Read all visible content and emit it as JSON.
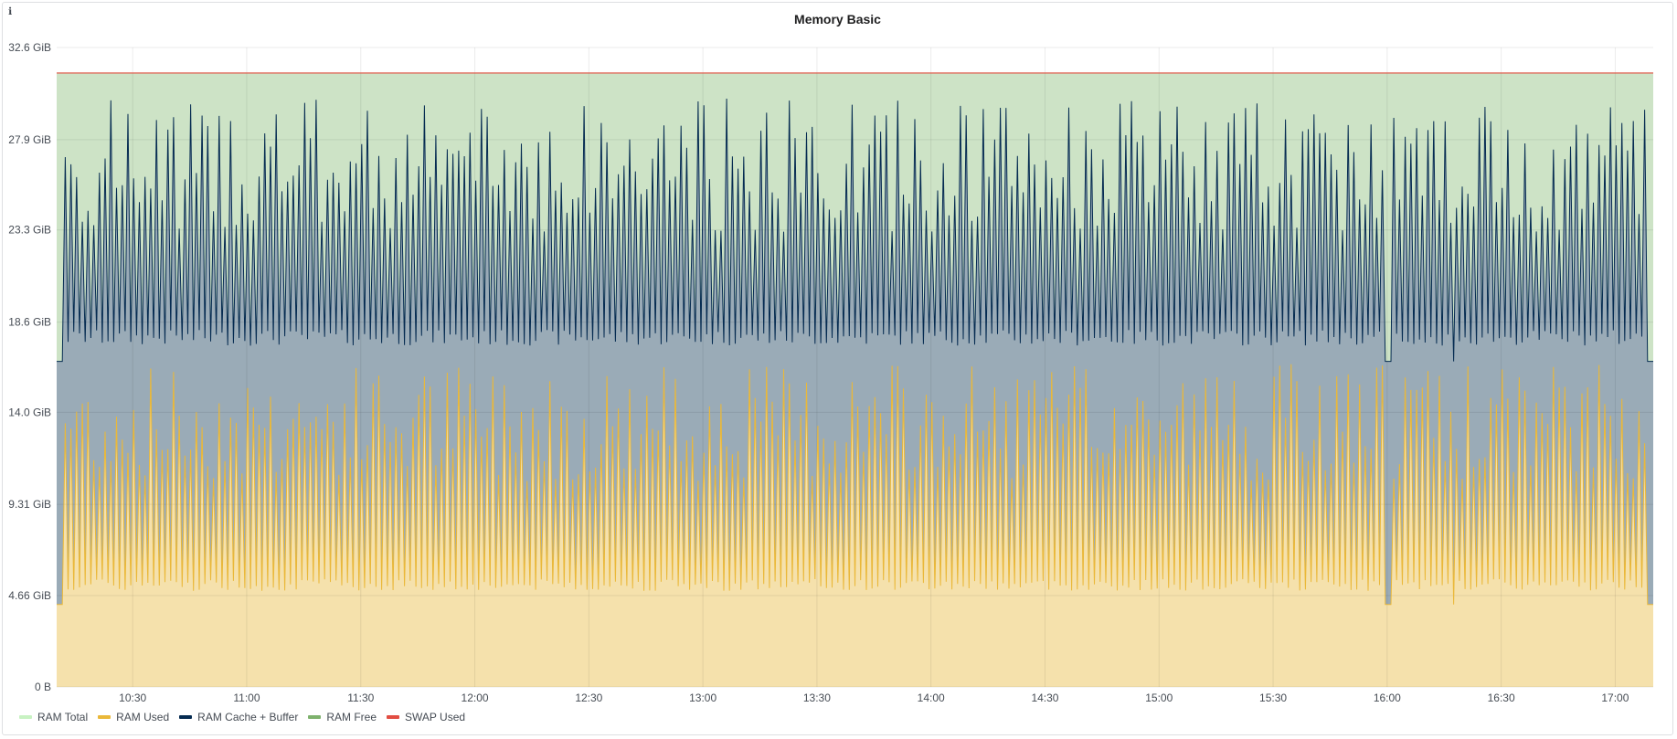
{
  "panel": {
    "title": "Memory Basic",
    "info_icon": "info-icon"
  },
  "chart_data": {
    "type": "area",
    "title": "Memory Basic",
    "xlabel": "",
    "ylabel": "",
    "ylim": [
      0,
      32.6
    ],
    "yunit": "GiB",
    "y_ticks": [
      {
        "value": 0,
        "label": "0 B"
      },
      {
        "value": 4.66,
        "label": "4.66 GiB"
      },
      {
        "value": 9.31,
        "label": "9.31 GiB"
      },
      {
        "value": 14.0,
        "label": "14.0 GiB"
      },
      {
        "value": 18.6,
        "label": "18.6 GiB"
      },
      {
        "value": 23.3,
        "label": "23.3 GiB"
      },
      {
        "value": 27.9,
        "label": "27.9 GiB"
      },
      {
        "value": 32.6,
        "label": "32.6 GiB"
      }
    ],
    "x_range_minutes": [
      610,
      1030
    ],
    "x_ticks": [
      {
        "minute": 630,
        "label": "10:30"
      },
      {
        "minute": 660,
        "label": "11:00"
      },
      {
        "minute": 690,
        "label": "11:30"
      },
      {
        "minute": 720,
        "label": "12:00"
      },
      {
        "minute": 750,
        "label": "12:30"
      },
      {
        "minute": 780,
        "label": "13:00"
      },
      {
        "minute": 810,
        "label": "13:30"
      },
      {
        "minute": 840,
        "label": "14:00"
      },
      {
        "minute": 870,
        "label": "14:30"
      },
      {
        "minute": 900,
        "label": "15:00"
      },
      {
        "minute": 930,
        "label": "15:30"
      },
      {
        "minute": 960,
        "label": "16:00"
      },
      {
        "minute": 990,
        "label": "16:30"
      },
      {
        "minute": 1020,
        "label": "17:00"
      }
    ],
    "series": [
      {
        "name": "RAM Total",
        "color": "#c8f2c2",
        "approx_value_gib": 31.3,
        "fill": "#cde3c6"
      },
      {
        "name": "RAM Used",
        "color": "#eab839",
        "fill": "#f5e1ac",
        "baseline_gib": 4.2,
        "spike_range_gib": [
          10.5,
          16.5
        ],
        "trough_gib": 4.9
      },
      {
        "name": "RAM Cache + Buffer",
        "color": "#052b51",
        "fill": "#9aabb7",
        "baseline_gib": 16.6,
        "spike_range_gib": [
          22.0,
          30.0
        ],
        "trough_gib": 17.4
      },
      {
        "name": "RAM Free",
        "color": "#7eb26d",
        "fill": "#cde3c6"
      },
      {
        "name": "SWAP Used",
        "color": "#e24d42",
        "approx_value_gib": 31.3
      }
    ],
    "flat_segments_minutes": [
      [
        610,
        612
      ],
      [
        959,
        961
      ],
      [
        977,
        978
      ],
      [
        1028,
        1030
      ]
    ]
  },
  "legend": [
    {
      "label": "RAM Total",
      "color": "#c8f2c2"
    },
    {
      "label": "RAM Used",
      "color": "#eab839"
    },
    {
      "label": "RAM Cache + Buffer",
      "color": "#052b51"
    },
    {
      "label": "RAM Free",
      "color": "#7eb26d"
    },
    {
      "label": "SWAP Used",
      "color": "#e24d42"
    }
  ]
}
